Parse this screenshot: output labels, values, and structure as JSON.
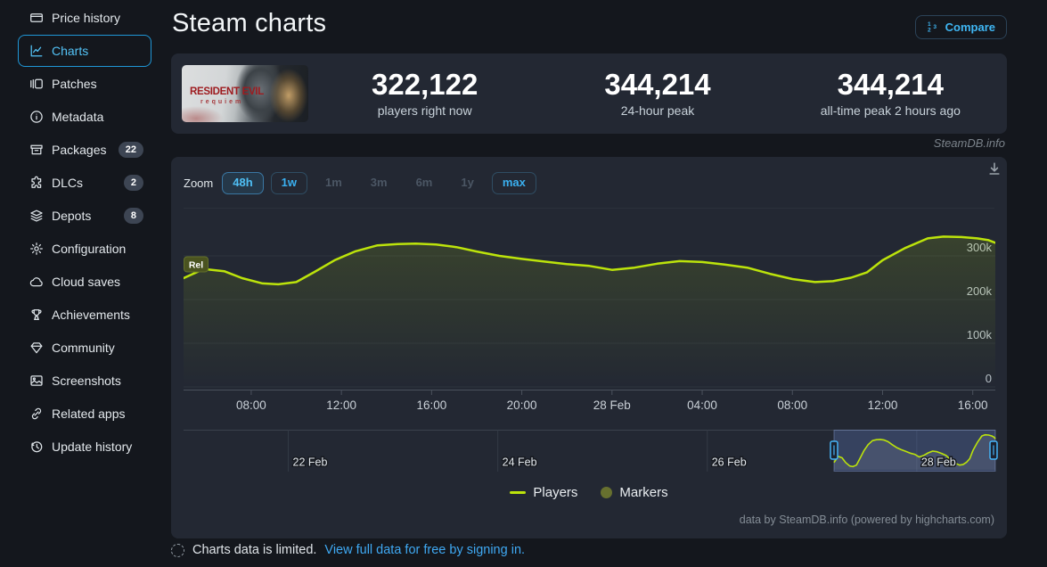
{
  "sidebar": {
    "items": [
      {
        "label": "Price history",
        "icon": "price-history"
      },
      {
        "label": "Charts",
        "icon": "charts",
        "active": true
      },
      {
        "label": "Patches",
        "icon": "patches"
      },
      {
        "label": "Metadata",
        "icon": "metadata"
      },
      {
        "label": "Packages",
        "icon": "packages",
        "badge": "22"
      },
      {
        "label": "DLCs",
        "icon": "dlcs",
        "badge": "2"
      },
      {
        "label": "Depots",
        "icon": "depots",
        "badge": "8"
      },
      {
        "label": "Configuration",
        "icon": "configuration"
      },
      {
        "label": "Cloud saves",
        "icon": "cloud-saves"
      },
      {
        "label": "Achievements",
        "icon": "achievements"
      },
      {
        "label": "Community",
        "icon": "community"
      },
      {
        "label": "Screenshots",
        "icon": "screenshots"
      },
      {
        "label": "Related apps",
        "icon": "related-apps"
      },
      {
        "label": "Update history",
        "icon": "update-history"
      }
    ]
  },
  "header": {
    "title": "Steam charts",
    "compare_label": "Compare"
  },
  "game": {
    "name_line1": "RESIDENT EVIL",
    "name_line2": "requiem"
  },
  "stats": [
    {
      "value": "322,122",
      "label": "players right now"
    },
    {
      "value": "344,214",
      "label": "24-hour peak"
    },
    {
      "value": "344,214",
      "label": "all-time peak 2 hours ago"
    }
  ],
  "watermark": "SteamDB.info",
  "toolbar": {
    "zoom_label": "Zoom",
    "buttons": [
      {
        "label": "48h",
        "state": "selected"
      },
      {
        "label": "1w",
        "state": "enabled"
      },
      {
        "label": "1m",
        "state": "disabled"
      },
      {
        "label": "3m",
        "state": "disabled"
      },
      {
        "label": "6m",
        "state": "disabled"
      },
      {
        "label": "1y",
        "state": "disabled"
      },
      {
        "label": "max",
        "state": "enabled"
      }
    ]
  },
  "chart_data": {
    "type": "line",
    "series": [
      {
        "name": "Players",
        "color": "#bce30b",
        "unit": "thousands of concurrent players",
        "points": [
          [
            0,
            249
          ],
          [
            0.9,
            270
          ],
          [
            1.8,
            265
          ],
          [
            2.6,
            249
          ],
          [
            3.5,
            237
          ],
          [
            4.2,
            235
          ],
          [
            5,
            240
          ],
          [
            5.8,
            263
          ],
          [
            6.7,
            290
          ],
          [
            7.6,
            310
          ],
          [
            8.6,
            324
          ],
          [
            9.5,
            327
          ],
          [
            10.3,
            328
          ],
          [
            11.2,
            326
          ],
          [
            12.1,
            320
          ],
          [
            13,
            310
          ],
          [
            14,
            300
          ],
          [
            15,
            293
          ],
          [
            16,
            287
          ],
          [
            17,
            281
          ],
          [
            18,
            277
          ],
          [
            19,
            268
          ],
          [
            20,
            273
          ],
          [
            21,
            282
          ],
          [
            22,
            288
          ],
          [
            23,
            286
          ],
          [
            24,
            280
          ],
          [
            25,
            273
          ],
          [
            26,
            259
          ],
          [
            27,
            247
          ],
          [
            28,
            240
          ],
          [
            28.8,
            242
          ],
          [
            29.6,
            250
          ],
          [
            30.3,
            262
          ],
          [
            31,
            290
          ],
          [
            32,
            318
          ],
          [
            33,
            340
          ],
          [
            33.7,
            344
          ],
          [
            34.5,
            343
          ],
          [
            35.2,
            340
          ],
          [
            35.7,
            336
          ],
          [
            36,
            330
          ]
        ]
      }
    ],
    "xlim_hours": [
      0,
      36
    ],
    "xticks": [
      {
        "h": 3,
        "label": "08:00"
      },
      {
        "h": 7,
        "label": "12:00"
      },
      {
        "h": 11,
        "label": "16:00"
      },
      {
        "h": 15,
        "label": "20:00"
      },
      {
        "h": 19,
        "label": "28 Feb"
      },
      {
        "h": 23,
        "label": "04:00"
      },
      {
        "h": 27,
        "label": "08:00"
      },
      {
        "h": 31,
        "label": "12:00"
      },
      {
        "h": 35,
        "label": "16:00"
      }
    ],
    "ylim": [
      0,
      360
    ],
    "yticks": [
      {
        "value": 0,
        "label": "0"
      },
      {
        "value": 100,
        "label": "100k"
      },
      {
        "value": 200,
        "label": "200k"
      },
      {
        "value": 300,
        "label": "300k"
      }
    ],
    "grid": true,
    "release_marker": {
      "label": "Rel",
      "hour": 0
    },
    "legend": [
      {
        "label": "Players",
        "swatch": "line",
        "color": "#bce30b"
      },
      {
        "label": "Markers",
        "swatch": "circle",
        "color": "#67702f"
      }
    ],
    "navigator": {
      "range_days": [
        0,
        7.75
      ],
      "date_ticks": [
        {
          "day": 1,
          "label": "22 Feb"
        },
        {
          "day": 3,
          "label": "24 Feb"
        },
        {
          "day": 5,
          "label": "26 Feb"
        },
        {
          "day": 7,
          "label": "28 Feb"
        }
      ],
      "selection_days": [
        6.21,
        7.75
      ],
      "value_range_k": [
        230,
        346
      ],
      "mask_color": "rgba(99,128,199,0.30)",
      "handle_color": "#45b3f7"
    }
  },
  "credits": "data by SteamDB.info (powered by highcharts.com)",
  "footer": {
    "notice": "Charts data is limited.",
    "link_text": "View full data for free by signing in."
  }
}
